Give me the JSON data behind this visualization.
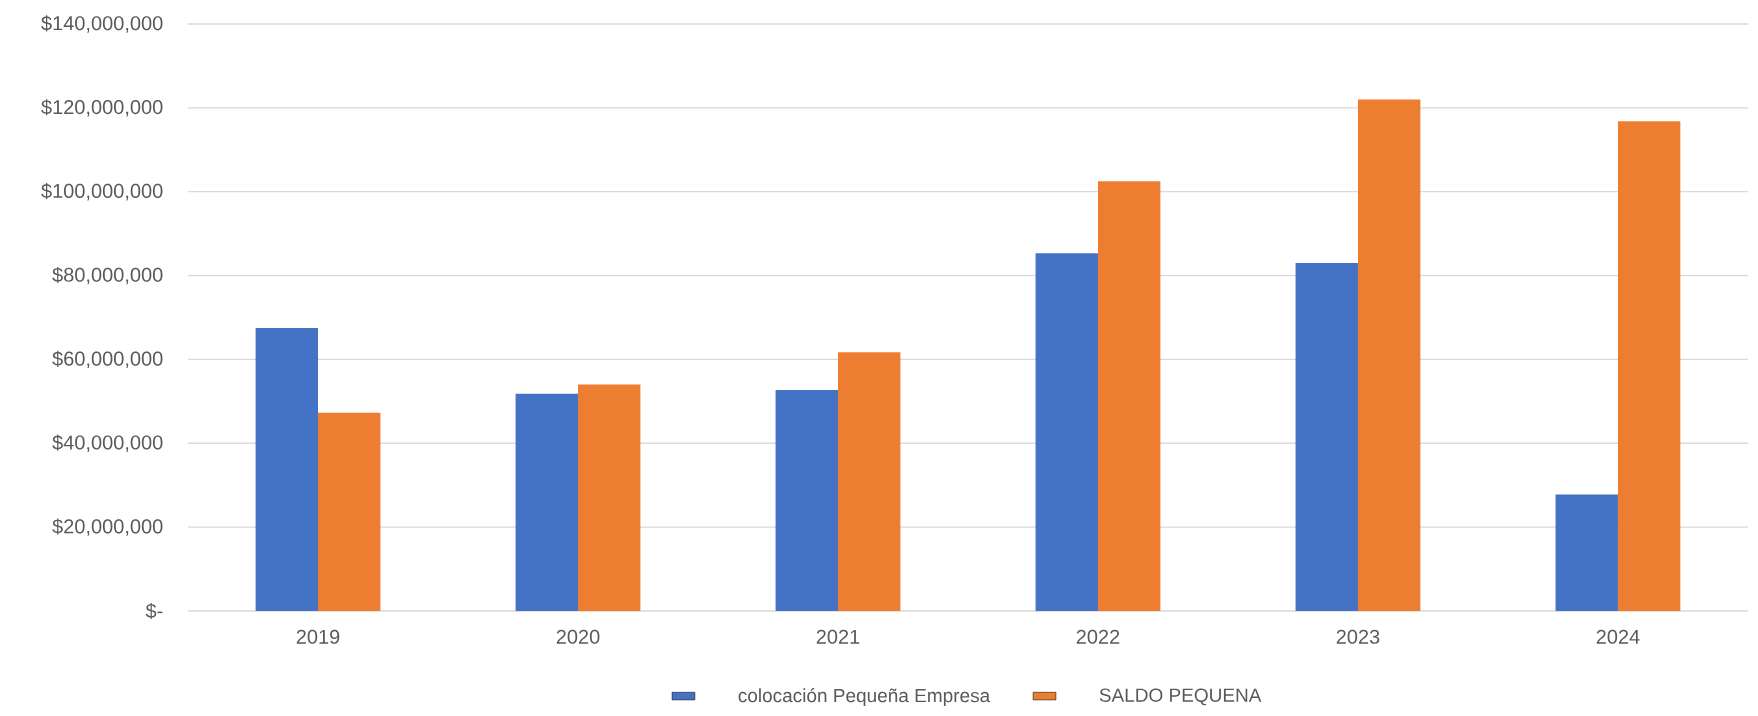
{
  "chart_data": {
    "type": "bar",
    "categories": [
      "2019",
      "2020",
      "2021",
      "2022",
      "2023",
      "2024"
    ],
    "series": [
      {
        "name": "colocación Pequeña Empresa",
        "color": "#4472c4",
        "values": [
          67500000,
          51800000,
          52700000,
          85300000,
          83000000,
          27800000
        ]
      },
      {
        "name": "SALDO PEQUENA",
        "color": "#ed7d31",
        "values": [
          47300000,
          54000000,
          61700000,
          102500000,
          122000000,
          116800000
        ]
      }
    ],
    "ylim": [
      0,
      140000000
    ],
    "yticks": [
      {
        "value": 0,
        "label": "$-"
      },
      {
        "value": 20000000,
        "label": "$20,000,000"
      },
      {
        "value": 40000000,
        "label": "$40,000,000"
      },
      {
        "value": 60000000,
        "label": "$60,000,000"
      },
      {
        "value": 80000000,
        "label": "$80,000,000"
      },
      {
        "value": 100000000,
        "label": "$100,000,000"
      },
      {
        "value": 120000000,
        "label": "$120,000,000"
      },
      {
        "value": 140000000,
        "label": "$140,000,000"
      }
    ],
    "grid": "y",
    "legend": "bottom"
  }
}
